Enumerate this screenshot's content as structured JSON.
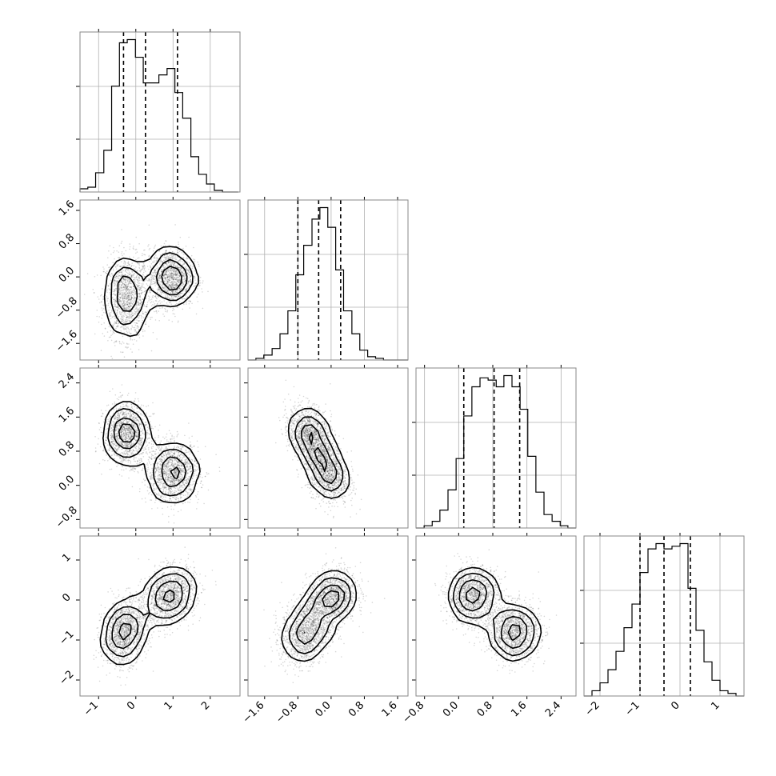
{
  "chart_data": {
    "type": "corner",
    "n_params": 4,
    "grid": true,
    "colors": {
      "line": "#000000",
      "frame": "#888888",
      "grid": "#b0b0b0",
      "background": "#ffffff"
    },
    "ranges": [
      [
        -1.5,
        2.8
      ],
      [
        -2.0,
        1.85
      ],
      [
        -1.0,
        2.75
      ],
      [
        -2.4,
        1.6
      ]
    ],
    "ticks": [
      [
        -1,
        0,
        1,
        2
      ],
      [
        -1.6,
        -0.8,
        0.0,
        0.8,
        1.6
      ],
      [
        -0.8,
        0.0,
        0.8,
        1.6,
        2.4
      ],
      [
        -2,
        -1,
        0,
        1
      ]
    ],
    "tick_labels": [
      [
        "−1",
        "0",
        "1",
        "2"
      ],
      [
        "−1.6",
        "−0.8",
        "0.0",
        "0.8",
        "1.6"
      ],
      [
        "−0.8",
        "0.0",
        "0.8",
        "1.6",
        "2.4"
      ],
      [
        "−2",
        "−1",
        "0",
        "1"
      ]
    ],
    "histograms": [
      {
        "param": 0,
        "edges": [
          -1.5,
          -1.29,
          -1.08,
          -0.86,
          -0.65,
          -0.44,
          -0.23,
          -0.01,
          0.2,
          0.41,
          0.62,
          0.84,
          1.05,
          1.26,
          1.48,
          1.69,
          1.9,
          2.11,
          2.33,
          2.54,
          2.75
        ],
        "counts": [
          2,
          3,
          12,
          26,
          66,
          93,
          95,
          84,
          68,
          68,
          73,
          77,
          62,
          46,
          22,
          11,
          5,
          1,
          0,
          0
        ],
        "quantiles": [
          -0.33,
          0.26,
          1.12
        ]
      },
      {
        "param": 1,
        "edges": [
          -2.0,
          -1.81,
          -1.62,
          -1.42,
          -1.23,
          -1.04,
          -0.85,
          -0.66,
          -0.46,
          -0.27,
          -0.08,
          0.11,
          0.3,
          0.5,
          0.69,
          0.88,
          1.07,
          1.26,
          1.46,
          1.65,
          1.85
        ],
        "counts": [
          0,
          1,
          3,
          7,
          16,
          30,
          52,
          70,
          86,
          93,
          81,
          55,
          30,
          16,
          6,
          2,
          1,
          0,
          0,
          0
        ],
        "quantiles": [
          -0.8,
          -0.3,
          0.23
        ]
      },
      {
        "param": 2,
        "edges": [
          -1.0,
          -0.81,
          -0.62,
          -0.44,
          -0.25,
          -0.06,
          0.12,
          0.31,
          0.5,
          0.69,
          0.88,
          1.06,
          1.25,
          1.44,
          1.62,
          1.81,
          2.0,
          2.19,
          2.38,
          2.56,
          2.75
        ],
        "counts": [
          0,
          1,
          3,
          8,
          17,
          31,
          50,
          63,
          67,
          66,
          63,
          68,
          63,
          53,
          32,
          16,
          6,
          3,
          1,
          0
        ],
        "quantiles": [
          0.12,
          0.83,
          1.43
        ]
      },
      {
        "param": 3,
        "edges": [
          -2.4,
          -2.2,
          -2.0,
          -1.8,
          -1.6,
          -1.4,
          -1.2,
          -1.0,
          -0.8,
          -0.6,
          -0.4,
          -0.2,
          0.0,
          0.2,
          0.4,
          0.6,
          0.8,
          1.0,
          1.2,
          1.4,
          1.6
        ],
        "counts": [
          0,
          2,
          5,
          10,
          17,
          26,
          35,
          47,
          56,
          58,
          56,
          57,
          58,
          41,
          25,
          13,
          6,
          2,
          1,
          0
        ],
        "quantiles": [
          -1.0,
          -0.4,
          0.26
        ]
      }
    ],
    "joint": [
      {
        "x": 0,
        "y": 1,
        "modes": [
          [
            -0.25,
            -0.5,
            0.3,
            0.5
          ],
          [
            0.95,
            0.0,
            0.3,
            0.35
          ]
        ],
        "rho": 0.0
      },
      {
        "x": 0,
        "y": 2,
        "modes": [
          [
            -0.25,
            1.2,
            0.3,
            0.35
          ],
          [
            1.0,
            0.3,
            0.35,
            0.35
          ]
        ],
        "rho": 0.0
      },
      {
        "x": 1,
        "y": 2,
        "modes": [
          [
            -0.5,
            1.15,
            0.25,
            0.35
          ],
          [
            -0.1,
            0.35,
            0.25,
            0.35
          ]
        ],
        "rho": -0.3
      },
      {
        "x": 0,
        "y": 3,
        "modes": [
          [
            -0.3,
            -0.8,
            0.3,
            0.4
          ],
          [
            0.9,
            0.1,
            0.35,
            0.35
          ]
        ],
        "rho": 0.2
      },
      {
        "x": 1,
        "y": 3,
        "modes": [
          [
            -0.6,
            -0.8,
            0.3,
            0.4
          ],
          [
            0.0,
            0.05,
            0.3,
            0.35
          ]
        ],
        "rho": 0.2
      },
      {
        "x": 2,
        "y": 3,
        "modes": [
          [
            0.35,
            0.1,
            0.3,
            0.35
          ],
          [
            1.3,
            -0.8,
            0.3,
            0.35
          ]
        ],
        "rho": 0.0
      }
    ]
  }
}
